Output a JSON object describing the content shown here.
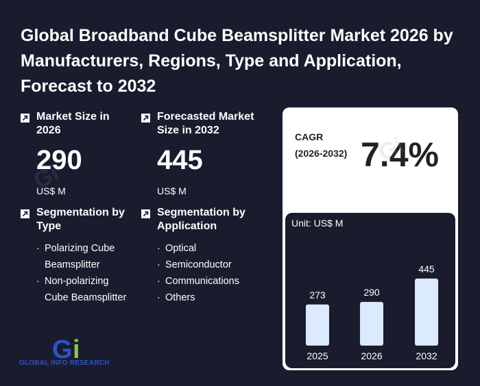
{
  "title": "Global Broadband Cube Beamsplitter Market 2026 by Manufacturers, Regions, Type and Application, Forecast to 2032",
  "market_size": {
    "label": "Market Size in 2026",
    "value": "290",
    "unit": "US$ M"
  },
  "forecast_size": {
    "label": "Forecasted Market Size in 2032",
    "value": "445",
    "unit": "US$ M"
  },
  "segmentation_type": {
    "label": "Segmentation by Type",
    "items": [
      "Polarizing Cube Beamsplitter",
      "Non-polarizing Cube Beamsplitter"
    ]
  },
  "segmentation_application": {
    "label": "Segmentation by Application",
    "items": [
      "Optical",
      "Semiconductor",
      "Communications",
      "Others"
    ]
  },
  "cagr": {
    "label": "CAGR (2026-2032)",
    "value": "7.4%"
  },
  "logo": {
    "text": "GLOBAL INFO RESEARCH",
    "mark": "Gi"
  },
  "colors": {
    "background": "#1a1c2e",
    "bar": "#dbeafe",
    "card": "#ffffff",
    "logo_blue": "#2b53c9",
    "logo_green": "#8dc63f"
  },
  "chart_data": {
    "type": "bar",
    "unit_label": "Unit: US$ M",
    "categories": [
      "2025",
      "2026",
      "2032"
    ],
    "values": [
      273,
      290,
      445
    ],
    "data_labels": [
      "273",
      "290",
      "445"
    ]
  }
}
